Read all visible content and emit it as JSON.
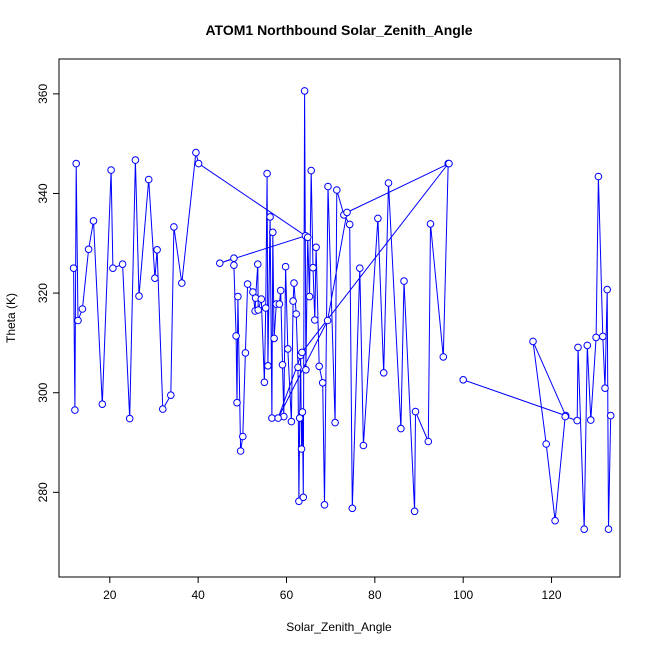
{
  "chart_data": {
    "type": "line",
    "title": "ATOM1 Northbound Solar_Zenith_Angle",
    "xlabel": "Solar_Zenith_Angle",
    "ylabel": "Theta (K)",
    "xlim": [
      8.5,
      135.5
    ],
    "ylim": [
      263,
      367
    ],
    "xticks": [
      20,
      40,
      60,
      80,
      100,
      120
    ],
    "yticks": [
      280,
      300,
      320,
      340,
      360
    ],
    "grid": false,
    "marker": "open-circle",
    "line_color": "#0000ff",
    "series": [
      {
        "x": [
          11.8,
          12.1,
          12.4,
          12.8,
          13.8,
          15.2,
          16.3,
          18.3,
          20.3,
          20.7,
          22.9,
          24.5,
          25.8,
          26.6,
          28.8,
          30.2,
          30.7,
          32.0,
          33.8,
          34.5,
          36.3,
          39.5,
          40.1,
          64.3,
          44.9,
          48.1,
          48.1,
          48.6,
          48.8,
          49.0,
          49.6,
          50.1,
          50.7,
          51.2,
          52.4,
          52.9,
          53.0,
          53.5,
          53.6,
          54.3,
          55.0,
          55.3,
          55.6,
          55.8,
          56.3,
          56.7,
          56.9,
          57.2,
          57.7,
          58.4,
          58.7,
          59.1,
          59.4,
          59.8,
          60.3,
          61.1,
          61.5,
          61.7,
          62.2,
          62.6,
          62.8,
          63.0,
          63.2,
          63.4,
          63.6,
          63.8,
          64.1,
          64.4,
          64.8,
          65.2,
          65.6,
          66.0,
          66.4,
          66.7,
          67.4,
          68.2,
          68.6,
          69.4,
          71.0,
          71.4,
          73.0,
          74.3,
          74.9,
          76.6,
          77.4,
          80.7,
          82.0,
          83.1,
          85.9,
          86.6,
          89.0,
          89.2,
          92.1,
          92.6,
          95.5,
          96.6,
          63.5,
          58.1,
          69.3,
          73.7,
          96.8
        ],
        "y": [
          325.0,
          296.5,
          346.0,
          314.5,
          316.8,
          328.8,
          334.5,
          297.7,
          344.7,
          325.0,
          325.8,
          294.8,
          346.7,
          319.4,
          342.8,
          323.0,
          328.7,
          296.7,
          299.5,
          333.3,
          322.0,
          348.2,
          346.0,
          331.5,
          326.0,
          327.0,
          325.6,
          311.4,
          298.0,
          319.3,
          288.3,
          291.2,
          308.0,
          321.8,
          320.2,
          316.4,
          319.0,
          325.8,
          316.6,
          318.8,
          302.1,
          317.0,
          344.0,
          305.4,
          335.3,
          294.9,
          332.2,
          310.9,
          317.8,
          317.8,
          320.5,
          305.6,
          295.2,
          325.3,
          308.8,
          294.2,
          318.4,
          322.0,
          315.8,
          305.1,
          278.2,
          294.9,
          307.5,
          288.7,
          296.1,
          279.0,
          360.6,
          304.6,
          331.2,
          319.3,
          344.6,
          325.1,
          314.6,
          329.2,
          305.3,
          302.0,
          277.5,
          341.4,
          294.0,
          340.7,
          335.7,
          333.8,
          276.8,
          325.0,
          289.4,
          335.0,
          304.0,
          342.1,
          292.8,
          322.4,
          276.2,
          296.2,
          290.2,
          333.9,
          307.2,
          346.0,
          308.1,
          294.9,
          314.5,
          336.2,
          346.0
        ]
      },
      {
        "x": [
          100.0,
          123.2,
          115.8,
          118.8,
          120.8,
          123.1,
          125.8,
          126.0,
          127.4,
          128.1,
          128.9,
          130.1,
          130.6,
          131.6,
          132.1,
          132.6,
          132.9,
          133.4
        ],
        "y": [
          302.6,
          295.4,
          310.3,
          289.7,
          274.3,
          295.2,
          294.4,
          309.1,
          272.6,
          309.5,
          294.5,
          311.1,
          343.4,
          311.3,
          300.9,
          320.7,
          272.6,
          295.4
        ]
      }
    ]
  }
}
